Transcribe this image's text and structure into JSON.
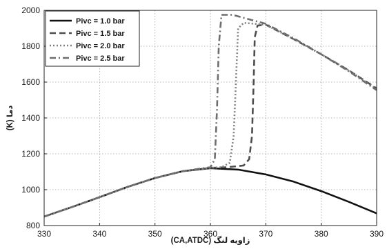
{
  "chart_data": {
    "type": "line",
    "xlabel": "زاویه لنگ (CA,ATDC)",
    "ylabel": "دما (K)",
    "xlim": [
      330,
      390
    ],
    "ylim": [
      800,
      2000
    ],
    "xticks": [
      330,
      340,
      350,
      360,
      370,
      380,
      390
    ],
    "yticks": [
      800,
      1000,
      1200,
      1400,
      1600,
      1800,
      2000
    ],
    "grid": true,
    "legend_position": "top-left",
    "series": [
      {
        "name": "Pivc = 1.0 bar",
        "style": "solid",
        "color": "#111111",
        "x": [
          330,
          335,
          340,
          345,
          350,
          355,
          360,
          365,
          370,
          375,
          380,
          385,
          390
        ],
        "y": [
          850,
          903,
          958,
          1015,
          1065,
          1103,
          1120,
          1112,
          1085,
          1045,
          992,
          932,
          868
        ]
      },
      {
        "name": "Pivc = 1.5 bar",
        "style": "dashed",
        "color": "#4d4d4d",
        "x": [
          330,
          335,
          340,
          345,
          350,
          355,
          360,
          363,
          366,
          367,
          367.5,
          367.8,
          368,
          368.5,
          370,
          375,
          380,
          385,
          390
        ],
        "y": [
          850,
          903,
          958,
          1015,
          1065,
          1103,
          1122,
          1125,
          1135,
          1170,
          1300,
          1600,
          1850,
          1915,
          1920,
          1840,
          1755,
          1665,
          1565
        ]
      },
      {
        "name": "Pivc = 2.0 bar",
        "style": "dotted",
        "color": "#808080",
        "x": [
          330,
          335,
          340,
          345,
          350,
          355,
          360,
          362,
          363.5,
          364.2,
          364.6,
          365,
          366,
          370,
          375,
          380,
          385,
          390
        ],
        "y": [
          850,
          903,
          958,
          1015,
          1065,
          1103,
          1122,
          1125,
          1150,
          1300,
          1600,
          1900,
          1930,
          1920,
          1840,
          1755,
          1665,
          1560
        ]
      },
      {
        "name": "Pivc = 2.5 bar",
        "style": "dashdot",
        "color": "#6e6e6e",
        "x": [
          330,
          335,
          340,
          345,
          350,
          355,
          358,
          360,
          360.8,
          361.2,
          361.5,
          362,
          364,
          370,
          375,
          380,
          385,
          390
        ],
        "y": [
          850,
          903,
          958,
          1015,
          1065,
          1103,
          1117,
          1125,
          1170,
          1450,
          1800,
          1975,
          1975,
          1925,
          1845,
          1755,
          1660,
          1555
        ]
      }
    ]
  }
}
